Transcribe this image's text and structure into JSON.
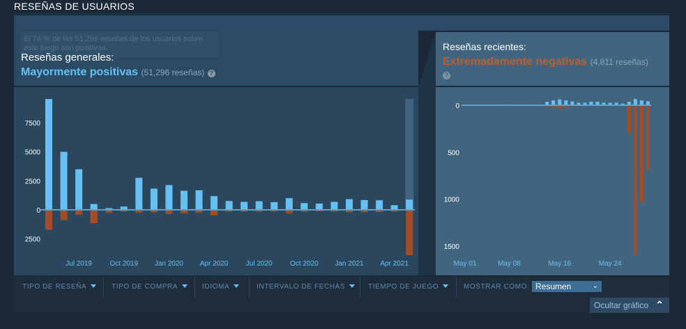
{
  "section_title": "RESEÑAS DE USUARIOS",
  "overall": {
    "label": "Reseñas generales:",
    "rating": "Mayormente positivas",
    "count": "(51,296 reseñas)",
    "tooltip": "El 76 % de las 51,296 reseñas de los usuarios sobre este juego son positivas.",
    "help_icon": "question-icon"
  },
  "recent": {
    "label": "Reseñas recientes:",
    "rating": "Extremadamente negativas",
    "count": "(4,811 reseñas)",
    "help_icon": "question-icon"
  },
  "colors": {
    "positive": "#66c0f4",
    "negative": "#a34c25",
    "positive_text": "#66c0f4",
    "negative_text": "#c35c2c"
  },
  "filters": {
    "items": [
      "TIPO DE RESEÑA",
      "TIPO DE COMPRA",
      "IDIOMA",
      "INTERVALO DE FECHAS",
      "TIEMPO DE JUEGO"
    ],
    "display_label": "MOSTRAR COMO:",
    "display_value": "Resumen",
    "hide_graph": "Ocultar gráfico"
  },
  "chart_data": [
    {
      "type": "bar",
      "categories": [
        "May 2019",
        "Jun 2019",
        "Jul 2019",
        "Aug 2019",
        "Sep 2019",
        "Oct 2019",
        "Nov 2019",
        "Dec 2019",
        "Jan 2020",
        "Feb 2020",
        "Mar 2020",
        "Apr 2020",
        "May 2020",
        "Jun 2020",
        "Jul 2020",
        "Aug 2020",
        "Sep 2020",
        "Oct 2020",
        "Nov 2020",
        "Dec 2020",
        "Jan 2021",
        "Feb 2021",
        "Mar 2021",
        "Apr 2021",
        "May 2021"
      ],
      "series": [
        {
          "values": [
            9540,
            4990,
            3490,
            500,
            140,
            280,
            2750,
            1820,
            2130,
            1640,
            1680,
            1180,
            760,
            680,
            740,
            660,
            1000,
            580,
            540,
            680,
            920,
            840,
            820,
            400,
            880
          ]
        },
        {
          "values": [
            -1720,
            -900,
            -420,
            -1160,
            -260,
            -160,
            -260,
            -220,
            -360,
            -300,
            -260,
            -480,
            -160,
            -160,
            -160,
            -140,
            -320,
            -160,
            -120,
            -160,
            -220,
            -220,
            -200,
            -160,
            -3900
          ]
        }
      ],
      "yticks": [
        {
          "value": 7500,
          "label": "7500"
        },
        {
          "value": 5000,
          "label": "5000"
        },
        {
          "value": 2500,
          "label": "2500"
        },
        {
          "value": 0,
          "label": "0"
        },
        {
          "value": -2500,
          "label": "2500"
        }
      ],
      "xtick_labels": [
        {
          "index": 2,
          "label": "Jul 2019"
        },
        {
          "index": 5,
          "label": "Oct 2019"
        },
        {
          "index": 8,
          "label": "Jan 2020"
        },
        {
          "index": 11,
          "label": "Apr 2020"
        },
        {
          "index": 14,
          "label": "Jul 2020"
        },
        {
          "index": 17,
          "label": "Oct 2020"
        },
        {
          "index": 20,
          "label": "Jan 2021"
        },
        {
          "index": 23,
          "label": "Apr 2021"
        }
      ],
      "ylim": [
        -3900,
        9540
      ],
      "highlighted_category": "May 2021"
    },
    {
      "type": "bar",
      "categories": [
        "May 01",
        "May 02",
        "May 03",
        "May 04",
        "May 05",
        "May 06",
        "May 07",
        "May 08",
        "May 09",
        "May 10",
        "May 11",
        "May 12",
        "May 13",
        "May 14",
        "May 15",
        "May 16",
        "May 17",
        "May 18",
        "May 19",
        "May 20",
        "May 21",
        "May 22",
        "May 23",
        "May 24",
        "May 25",
        "May 26",
        "May 27",
        "May 28",
        "May 29",
        "May 30"
      ],
      "series": [
        {
          "values": [
            6,
            6,
            6,
            5,
            5,
            5,
            8,
            8,
            6,
            6,
            5,
            5,
            5,
            37,
            52,
            62,
            52,
            40,
            27,
            27,
            37,
            37,
            27,
            27,
            27,
            17,
            37,
            67,
            52,
            42
          ]
        },
        {
          "values": [
            -2,
            -2,
            -2,
            -2,
            -2,
            -2,
            -2,
            -2,
            -2,
            -2,
            -3,
            -3,
            -3,
            -15,
            -25,
            -40,
            -20,
            -15,
            -5,
            -5,
            -5,
            -5,
            -5,
            -5,
            -5,
            -5,
            -300,
            -1590,
            -1037,
            -686
          ]
        }
      ],
      "yticks": [
        {
          "value": 0,
          "label": "0"
        },
        {
          "value": -500,
          "label": "500"
        },
        {
          "value": -1000,
          "label": "1000"
        },
        {
          "value": -1500,
          "label": "1500"
        }
      ],
      "xtick_labels": [
        {
          "index": 0,
          "label": "May 01"
        },
        {
          "index": 7,
          "label": "May 08"
        },
        {
          "index": 15,
          "label": "May 16"
        },
        {
          "index": 23,
          "label": "May 24"
        }
      ],
      "ylim": [
        -1590,
        67
      ]
    }
  ]
}
